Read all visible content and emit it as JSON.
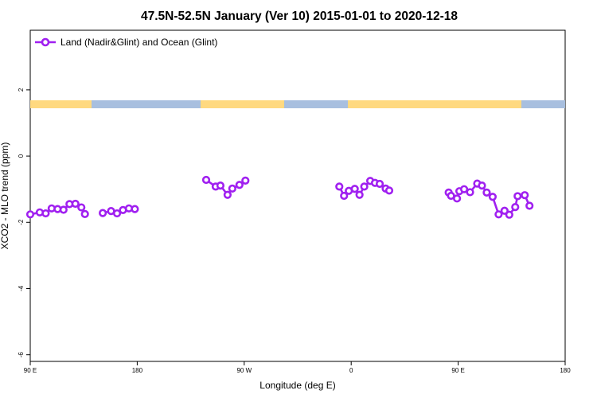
{
  "chart_data": {
    "type": "line",
    "title": "47.5N-52.5N January (Ver 10)   2015-01-01 to 2020-12-18",
    "xlabel": "Longitude (deg E)",
    "ylabel": "XCO2 - MLO trend (ppm)",
    "xlim": [
      90,
      540
    ],
    "ylim": [
      -6.2,
      3.8
    ],
    "x_ticks": [
      {
        "value": 90,
        "label": "90 E"
      },
      {
        "value": 180,
        "label": "180"
      },
      {
        "value": 270,
        "label": "90 W"
      },
      {
        "value": 360,
        "label": "0"
      },
      {
        "value": 450,
        "label": "90 E"
      },
      {
        "value": 540,
        "label": "180"
      }
    ],
    "y_ticks": [
      {
        "value": 2,
        "label": "2"
      },
      {
        "value": 0,
        "label": "0"
      },
      {
        "value": -2,
        "label": "-2"
      },
      {
        "value": -4,
        "label": "-4"
      },
      {
        "value": -6,
        "label": "-6"
      }
    ],
    "legend_position": "top-left",
    "grid": false,
    "series": [
      {
        "name": "Land (Nadir&Glint) and Ocean (Glint)",
        "color": "#a020f0",
        "x": [
          90,
          98,
          103,
          108,
          113,
          118,
          123,
          128,
          133,
          136,
          151,
          158,
          163,
          168,
          173,
          178,
          238,
          246,
          250,
          256,
          260,
          266,
          271,
          350,
          354,
          358,
          363,
          367,
          371,
          376,
          380,
          384,
          389,
          392,
          442,
          444,
          449,
          451,
          455,
          460,
          466,
          470,
          474,
          479,
          484,
          489,
          493,
          498,
          500,
          506,
          510
        ],
        "y": [
          -1.76,
          -1.7,
          -1.73,
          -1.58,
          -1.6,
          -1.62,
          -1.45,
          -1.44,
          -1.55,
          -1.75,
          -1.72,
          -1.66,
          -1.73,
          -1.63,
          -1.58,
          -1.6,
          -0.72,
          -0.92,
          -0.89,
          -1.17,
          -0.98,
          -0.87,
          -0.74,
          -0.92,
          -1.2,
          -1.05,
          -0.99,
          -1.17,
          -0.92,
          -0.75,
          -0.81,
          -0.84,
          -0.98,
          -1.04,
          -1.1,
          -1.2,
          -1.28,
          -1.06,
          -1.0,
          -1.09,
          -0.83,
          -0.89,
          -1.1,
          -1.23,
          -1.76,
          -1.65,
          -1.77,
          -1.54,
          -1.21,
          -1.18,
          -1.5
        ]
      }
    ]
  }
}
